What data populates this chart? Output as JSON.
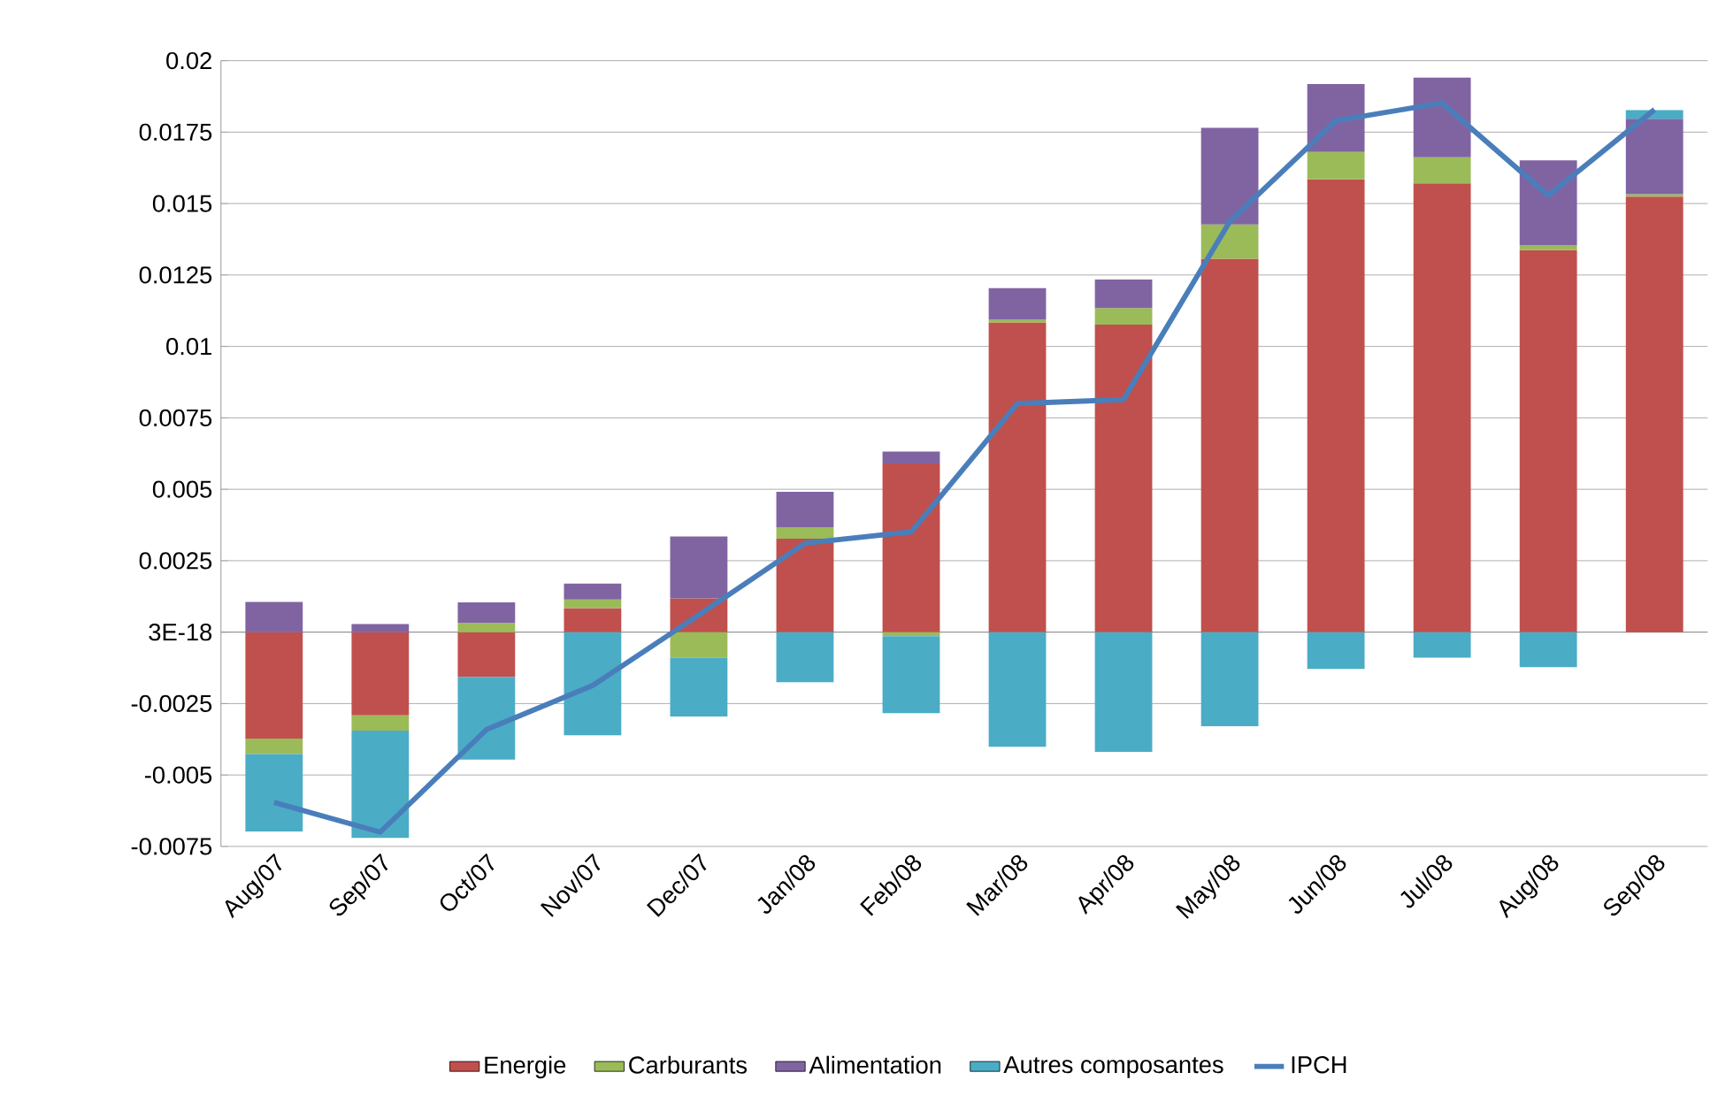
{
  "chart_data": {
    "type": "bar",
    "stacked": true,
    "categories": [
      "Aug/07",
      "Sep/07",
      "Oct/07",
      "Nov/07",
      "Dec/07",
      "Jan/08",
      "Feb/08",
      "Mar/08",
      "Apr/08",
      "May/08",
      "Jun/08",
      "Jul/08",
      "Aug/08",
      "Sep/08"
    ],
    "series": [
      {
        "name": "Energie",
        "color": "#c0504d",
        "values": [
          -0.00373,
          -0.00291,
          -0.00157,
          0.00084,
          0.00118,
          0.00327,
          0.0059,
          0.01084,
          0.01076,
          0.01307,
          0.01585,
          0.01571,
          0.01337,
          0.01524
        ]
      },
      {
        "name": "Carburants",
        "color": "#9bbb59",
        "values": [
          -0.00054,
          -0.00054,
          0.00032,
          0.0003,
          -0.0009,
          0.0004,
          -0.00014,
          0.00011,
          0.00058,
          0.0012,
          0.00096,
          0.00091,
          0.00018,
          9e-05
        ]
      },
      {
        "name": "Alimentation",
        "color": "#8064a2",
        "values": [
          0.00106,
          0.00028,
          0.00072,
          0.00056,
          0.00217,
          0.00124,
          0.00042,
          0.00109,
          0.001,
          0.00338,
          0.00237,
          0.00279,
          0.00296,
          0.00264
        ]
      },
      {
        "name": "Autres composantes",
        "color": "#4bacc6",
        "values": [
          -0.00271,
          -0.00375,
          -0.00289,
          -0.00361,
          -0.00205,
          -0.00175,
          -0.0027,
          -0.00401,
          -0.00419,
          -0.00329,
          -0.00129,
          -0.00089,
          -0.00123,
          0.0003
        ]
      },
      {
        "name": "IPCH",
        "type": "line",
        "color": "#4a7ebb",
        "values": [
          -0.00596,
          -0.007,
          -0.00341,
          -0.00187,
          0.0006,
          0.00311,
          0.00351,
          0.008,
          0.00814,
          0.01437,
          0.0179,
          0.01852,
          0.01528,
          0.01829
        ]
      }
    ],
    "ylim": [
      -0.0075,
      0.02
    ],
    "yticks": [
      -0.0075,
      -0.005,
      -0.0025,
      {
        "value": 0,
        "label": "3E-18"
      },
      0.0025,
      0.005,
      0.0075,
      0.01,
      0.0125,
      0.015,
      0.0175,
      0.02
    ],
    "grid": "y",
    "legend": "bottom"
  }
}
